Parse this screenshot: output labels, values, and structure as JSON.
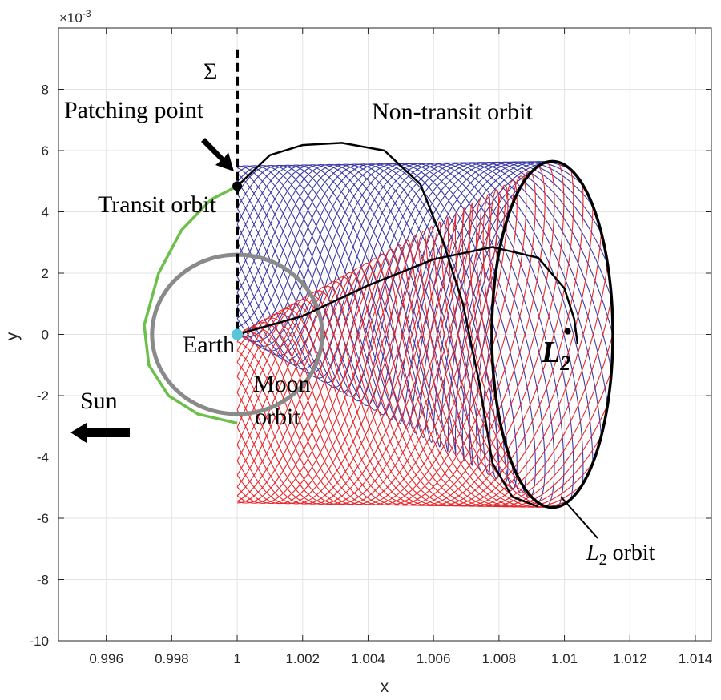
{
  "chart_data": {
    "type": "line",
    "title": "",
    "xlabel": "x",
    "ylabel": "y",
    "y_exponent_label": "×10",
    "y_exponent_power": "-3",
    "xlim": [
      0.99454,
      1.01449
    ],
    "ylim": [
      -10,
      10
    ],
    "y_units_scale": 0.001,
    "grid": true,
    "x_ticks": [
      0.996,
      0.998,
      1,
      1.002,
      1.004,
      1.006,
      1.008,
      1.01,
      1.012,
      1.014
    ],
    "x_tick_labels": [
      "0.996",
      "0.998",
      "1",
      "1.002",
      "1.004",
      "1.006",
      "1.008",
      "1.01",
      "1.012",
      "1.014"
    ],
    "y_ticks": [
      -10,
      -8,
      -6,
      -4,
      -2,
      0,
      2,
      4,
      6,
      8
    ],
    "y_tick_labels": [
      "-10",
      "-8",
      "-6",
      "-4",
      "-2",
      "0",
      "2",
      "4",
      "6",
      "8"
    ],
    "colors": {
      "non_transit_family": "#3c3ca6",
      "transit_family": "#e8262a",
      "transit_orbit": "#6cc04a",
      "moon_orbit": "#8a8a8a",
      "earth": "#56c6d8",
      "trajectory": "#000000",
      "l2_orbit": "#000000"
    },
    "families": [
      {
        "name": "non-transit",
        "color_key": "non_transit_family",
        "y_sign": 1,
        "curves": 30
      },
      {
        "name": "transit",
        "color_key": "transit_family",
        "y_sign": -1,
        "curves": 30
      }
    ],
    "l2_orbit": {
      "center": [
        1.00963,
        0
      ],
      "x_radius": 0.00185,
      "y_radius": 5.65
    },
    "moon_orbit": {
      "center": [
        1.0,
        0
      ],
      "radius": 2.6
    },
    "earth": [
      1.0,
      0
    ],
    "l2_point": [
      1.0101,
      0.1
    ],
    "patching_point": [
      1.0,
      4.84
    ],
    "sigma_section": {
      "x": 1.0,
      "y_range": [
        0,
        9.3
      ]
    },
    "transit_orbit": [
      [
        1.0,
        4.84
      ],
      [
        0.9992,
        4.4
      ],
      [
        0.9983,
        3.4
      ],
      [
        0.9976,
        2.0
      ],
      [
        0.99716,
        0.3
      ],
      [
        0.9973,
        -1.0
      ],
      [
        0.9979,
        -2.0
      ],
      [
        0.9988,
        -2.6
      ],
      [
        1.0,
        -2.9
      ]
    ],
    "trajectories": [
      [
        [
          1.0,
          4.84
        ],
        [
          1.001,
          5.85
        ],
        [
          1.002,
          6.18
        ],
        [
          1.0032,
          6.25
        ],
        [
          1.0045,
          6.0
        ],
        [
          1.0056,
          4.9
        ],
        [
          1.0063,
          3.0
        ],
        [
          1.0069,
          1.0
        ],
        [
          1.0074,
          -1.6
        ],
        [
          1.0078,
          -4.2
        ],
        [
          1.0084,
          -5.3
        ],
        [
          1.0092,
          -5.62
        ]
      ],
      [
        [
          1.0,
          0.0
        ],
        [
          1.002,
          0.6
        ],
        [
          1.004,
          1.6
        ],
        [
          1.006,
          2.45
        ],
        [
          1.0078,
          2.85
        ],
        [
          1.0092,
          2.5
        ],
        [
          1.01,
          1.5
        ],
        [
          1.0103,
          0.5
        ],
        [
          1.0104,
          -0.3
        ]
      ]
    ],
    "annotations": {
      "sigma": "Σ",
      "patching_point": "Patching point",
      "transit_orbit": "Transit orbit",
      "non_transit_orbit": "Non-transit orbit",
      "earth": "Earth",
      "moon_line1": "Moon",
      "moon_line2": "orbit",
      "sun": "Sun",
      "l2": "L",
      "l2_sub": "2",
      "l2_orbit_L": "L",
      "l2_orbit_sub": "2",
      "l2_orbit_rest": " orbit"
    }
  }
}
